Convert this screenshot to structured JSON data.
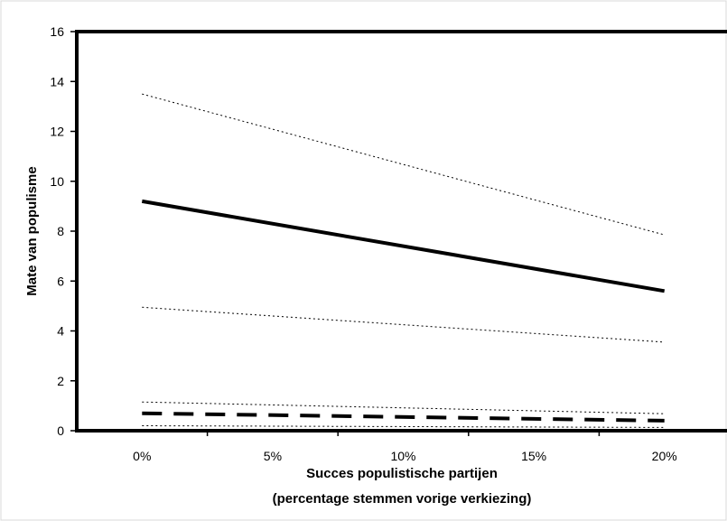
{
  "chart_data": {
    "type": "line",
    "title": "",
    "xlabel_line1": "Succes populistische partijen",
    "xlabel_line2": "(percentage stemmen vorige verkiezing)",
    "ylabel": "Mate van populisme",
    "xlim": [
      -0.025,
      0.225
    ],
    "ylim": [
      0,
      16
    ],
    "y_ticks": [
      0,
      2,
      4,
      6,
      8,
      10,
      12,
      14,
      16
    ],
    "x_ticks": [
      0,
      0.05,
      0.1,
      0.15,
      0.2
    ],
    "x_tick_labels": [
      "0%",
      "5%",
      "10%",
      "15%",
      "20%"
    ],
    "grid": false,
    "legend": "none",
    "x": [
      0,
      0.2
    ],
    "series": [
      {
        "style": "solid-thick",
        "values": [
          9.2,
          5.6
        ]
      },
      {
        "style": "dotted",
        "values": [
          13.5,
          7.85
        ]
      },
      {
        "style": "dotted",
        "values": [
          4.95,
          3.55
        ]
      },
      {
        "style": "dashed-thick",
        "values": [
          0.7,
          0.4
        ]
      },
      {
        "style": "dotted",
        "values": [
          1.15,
          0.68
        ]
      },
      {
        "style": "dotted",
        "values": [
          0.2,
          0.13
        ]
      }
    ]
  }
}
